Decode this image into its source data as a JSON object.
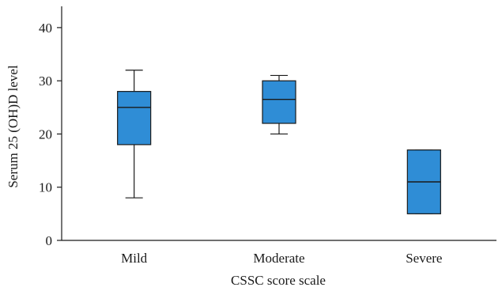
{
  "chart_data": {
    "type": "box",
    "xlabel": "CSSC score scale",
    "ylabel": "Serum 25 (OH)D level",
    "ylim": [
      0,
      44
    ],
    "yticks": [
      0,
      10,
      20,
      30,
      40
    ],
    "grid": false,
    "box_color": "#2f8dd6",
    "categories": [
      "Mild",
      "Moderate",
      "Severe"
    ],
    "boxes": [
      {
        "category": "Mild",
        "min": 8,
        "q1": 18,
        "median": 25,
        "q3": 28,
        "max": 32
      },
      {
        "category": "Moderate",
        "min": 20,
        "q1": 22,
        "median": 26.5,
        "q3": 30,
        "max": 31
      },
      {
        "category": "Severe",
        "min": 5,
        "q1": 5,
        "median": 11,
        "q3": 17,
        "max": 17
      }
    ]
  }
}
